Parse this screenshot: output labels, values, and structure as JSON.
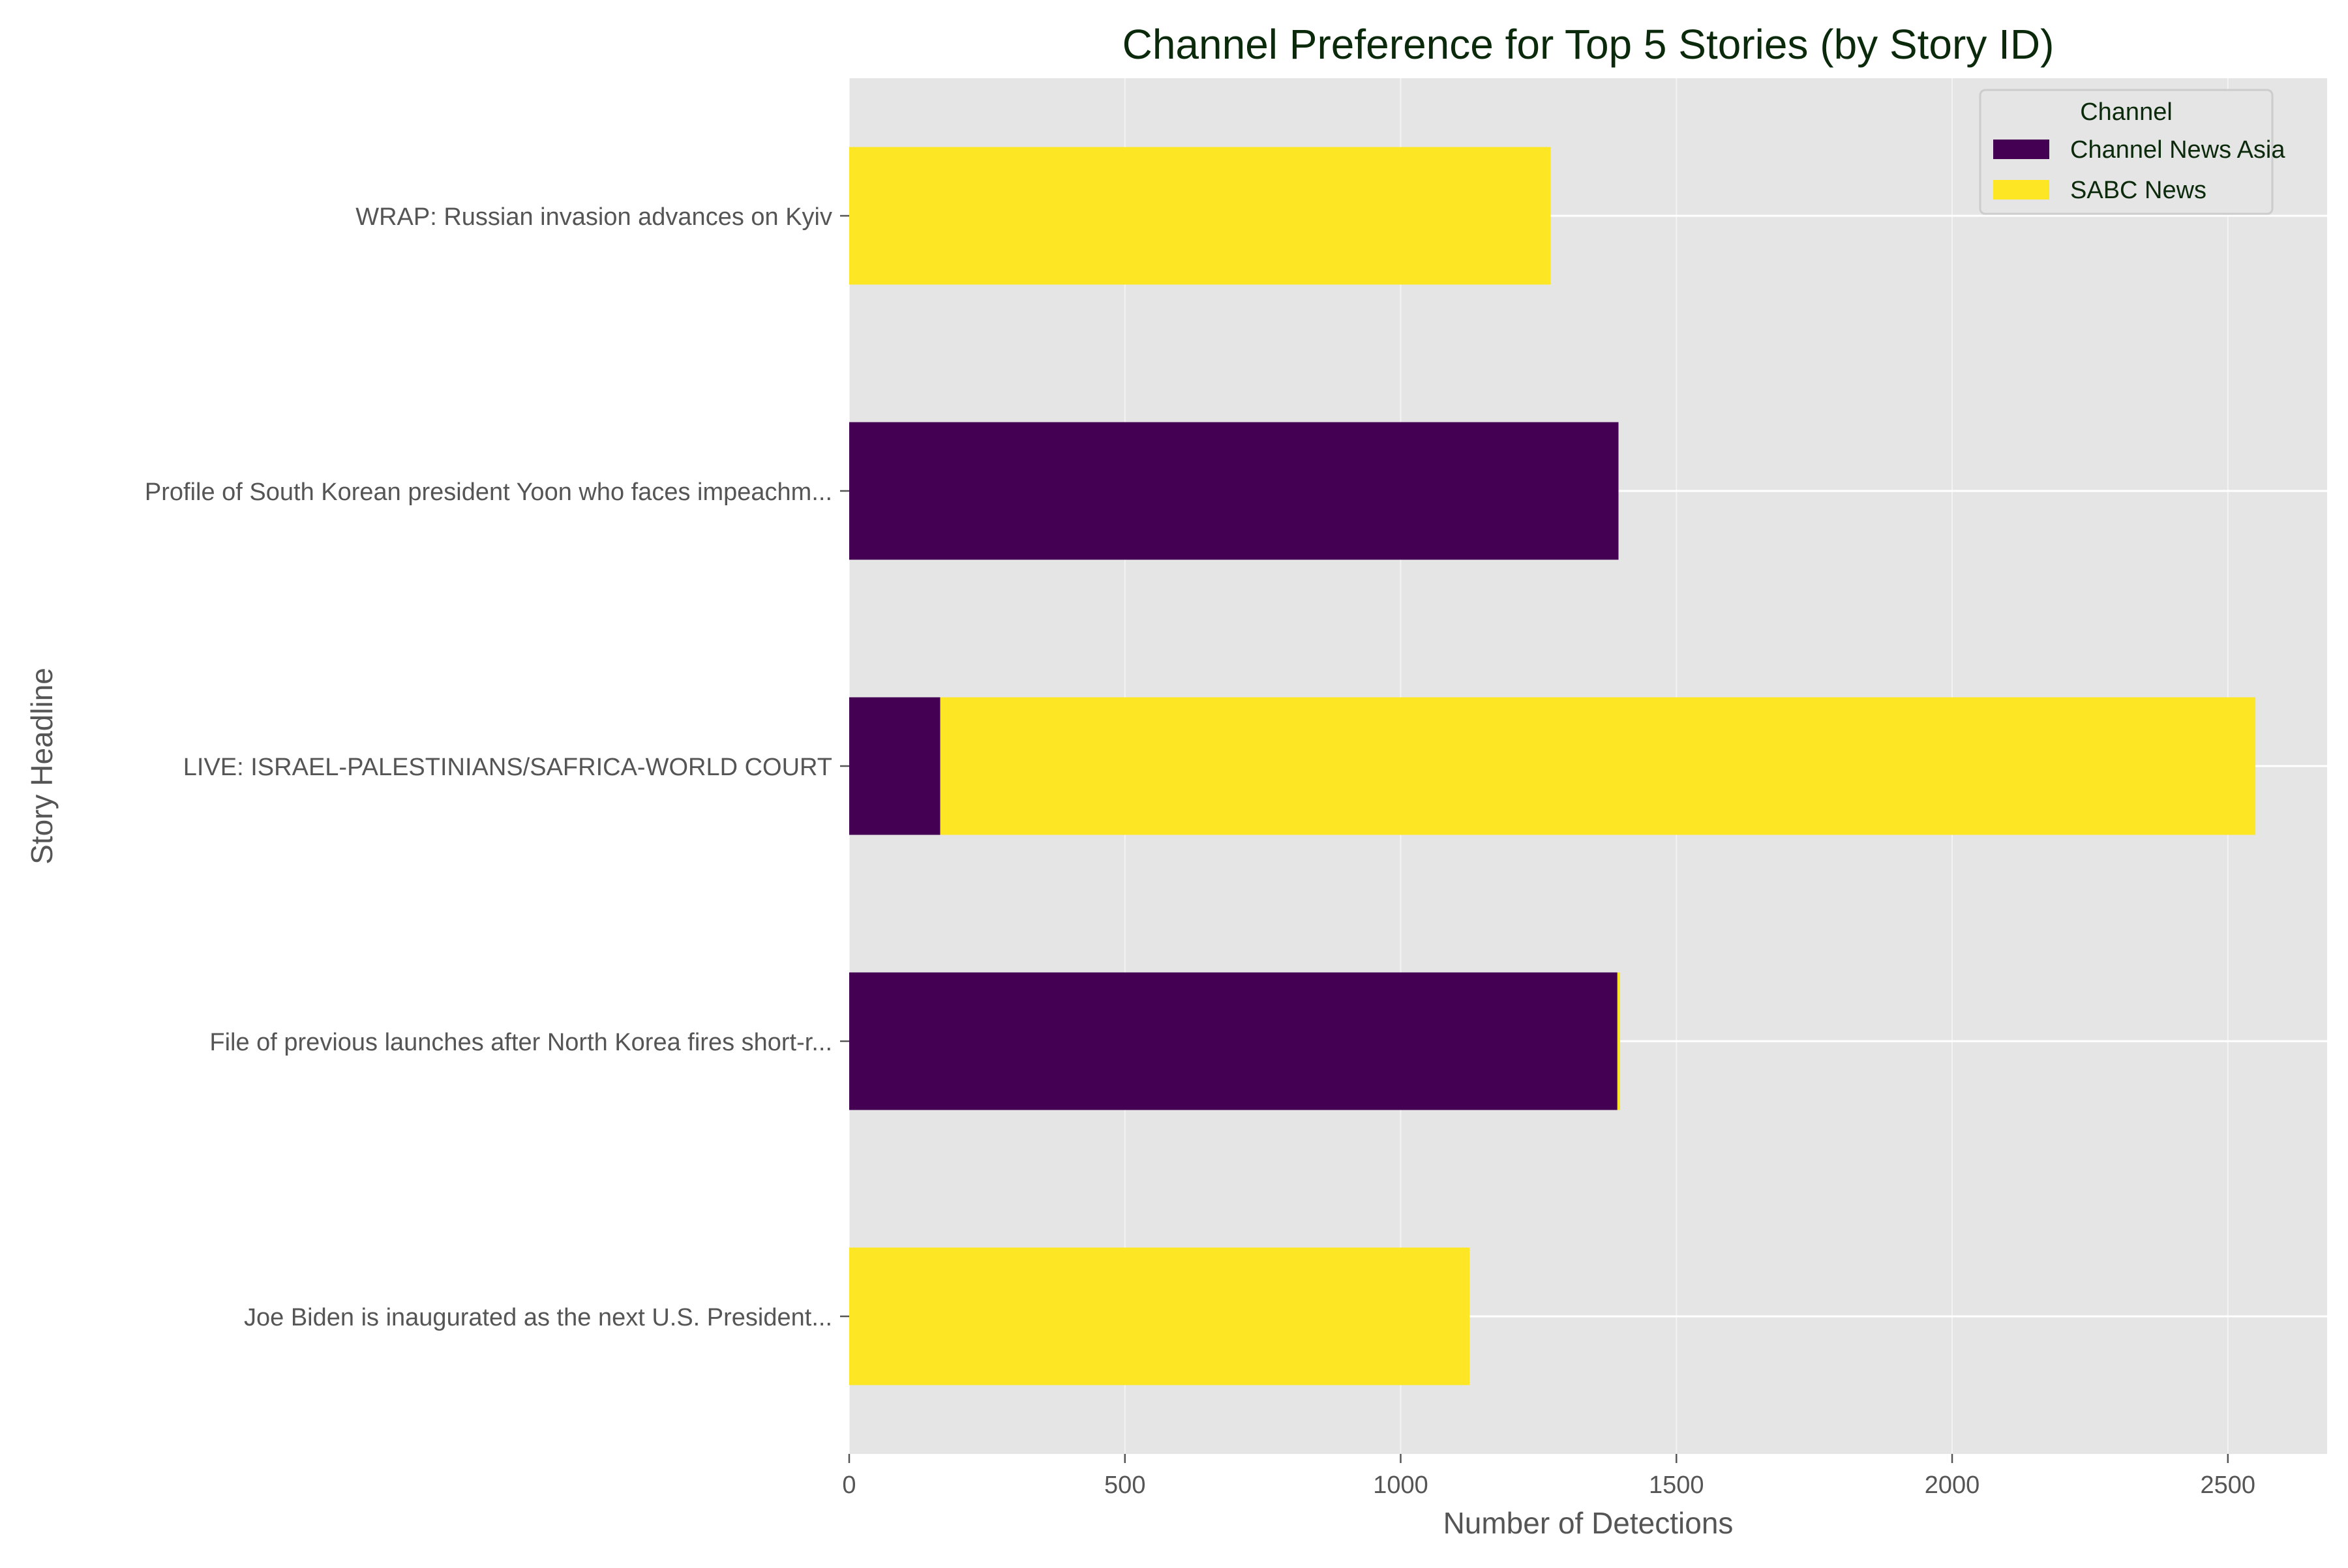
{
  "chart_data": {
    "type": "bar",
    "orientation": "horizontal",
    "stacked": true,
    "title": "Channel Preference for Top 5 Stories (by Story ID)",
    "xlabel": "Number of Detections",
    "ylabel": "Story Headline",
    "xlim": [
      0,
      2680
    ],
    "xticks": [
      0,
      500,
      1000,
      1500,
      2000,
      2500
    ],
    "grid": true,
    "legend": {
      "title": "Channel",
      "position": "top-right"
    },
    "categories": [
      "WRAP: Russian invasion advances on Kyiv",
      "Profile of South Korean president Yoon who faces impeachm...",
      "LIVE: ISRAEL-PALESTINIANS/SAFRICA-WORLD COURT",
      "File of previous launches after North Korea fires short-r...",
      "Joe Biden is inaugurated as the next U.S. President..."
    ],
    "series": [
      {
        "name": "Channel News Asia",
        "color": "#440154",
        "values": [
          0,
          1395,
          165,
          1393,
          0
        ]
      },
      {
        "name": "SABC News",
        "color": "#fde725",
        "values": [
          1272,
          0,
          2385,
          5,
          1125
        ]
      }
    ]
  },
  "style": {
    "plot_background": "#e5e5e5",
    "grid_color": "#ffffff",
    "title_color": "#0b2a0b",
    "label_color": "#555555",
    "tick_color": "#555555"
  }
}
